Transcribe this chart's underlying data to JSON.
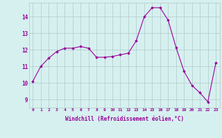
{
  "x": [
    0,
    1,
    2,
    3,
    4,
    5,
    6,
    7,
    8,
    9,
    10,
    11,
    12,
    13,
    14,
    15,
    16,
    17,
    18,
    19,
    20,
    21,
    22,
    23
  ],
  "y": [
    10.1,
    11.0,
    11.5,
    11.9,
    12.1,
    12.1,
    12.2,
    12.1,
    11.55,
    11.55,
    11.6,
    11.7,
    11.8,
    12.55,
    14.0,
    14.55,
    14.55,
    13.8,
    12.15,
    10.7,
    9.85,
    9.4,
    8.85,
    11.2
  ],
  "ylim": [
    8.5,
    14.85
  ],
  "yticks": [
    9,
    10,
    11,
    12,
    13,
    14
  ],
  "xticks": [
    0,
    1,
    2,
    3,
    4,
    5,
    6,
    7,
    8,
    9,
    10,
    11,
    12,
    13,
    14,
    15,
    16,
    17,
    18,
    19,
    20,
    21,
    22,
    23
  ],
  "xlabel": "Windchill (Refroidissement éolien,°C)",
  "line_color": "#990099",
  "marker": "D",
  "marker_size": 1.8,
  "bg_color": "#d6f0f0",
  "grid_color": "#b0c8c8",
  "label_color": "#990099",
  "tick_color": "#990099",
  "figsize": [
    3.2,
    2.0
  ],
  "dpi": 100
}
